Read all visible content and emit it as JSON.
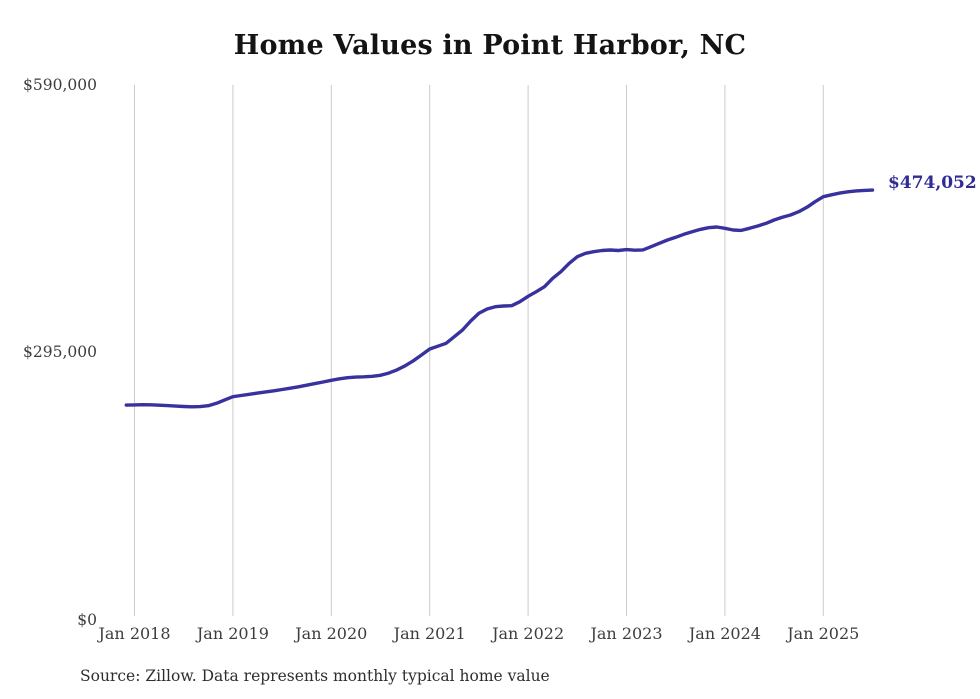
{
  "chart": {
    "title": "Home Values in Point Harbor, NC",
    "end_label": "$474,052",
    "source": "Source: Zillow. Data represents monthly typical home value",
    "y_axis": {
      "labels": [
        "$590,000",
        "$295,000",
        "$0"
      ]
    },
    "colors": {
      "line": "#38329e",
      "end_label": "#312b96",
      "gridline": "#cbcbcb",
      "axis_text": "#3d3d3d",
      "title_text": "#141414"
    }
  },
  "chart_data": {
    "type": "line",
    "title": "Home Values in Point Harbor, NC",
    "series_name": "Monthly typical home value",
    "x_start": "Dec 2017",
    "x_interval": "1 month",
    "x_end": "Jul 2025",
    "x_tick_labels": [
      "Jan 2018",
      "Jan 2019",
      "Jan 2020",
      "Jan 2021",
      "Jan 2022",
      "Jan 2023",
      "Jan 2024",
      "Jan 2025"
    ],
    "y_tick_labels": [
      "$0",
      "$295,000",
      "$590,000"
    ],
    "ylim": [
      0,
      590000
    ],
    "grid": "vertical-only",
    "legend": "none",
    "final_value": 474052,
    "final_value_label": "$474,052",
    "values": [
      237000,
      237200,
      237400,
      237300,
      236900,
      236400,
      235900,
      235400,
      235100,
      235300,
      236300,
      239000,
      242700,
      246300,
      247600,
      248900,
      250200,
      251500,
      252800,
      254200,
      255600,
      257200,
      258900,
      260700,
      262500,
      264300,
      266000,
      267200,
      267900,
      268200,
      268700,
      269900,
      272300,
      275800,
      280300,
      285900,
      292200,
      298900,
      302000,
      305100,
      312400,
      319800,
      329700,
      338200,
      343000,
      345500,
      346300,
      346600,
      351000,
      357000,
      362100,
      367600,
      376800,
      384100,
      393300,
      400700,
      404400,
      406200,
      407500,
      408000,
      407500,
      408500,
      407800,
      408200,
      411700,
      415400,
      419100,
      422000,
      425300,
      428200,
      430800,
      432600,
      433400,
      432000,
      430100,
      429700,
      432000,
      434500,
      437400,
      441100,
      444100,
      446600,
      450300,
      455100,
      461300,
      466800,
      468900,
      470800,
      472200,
      473200,
      473800,
      474052
    ]
  }
}
